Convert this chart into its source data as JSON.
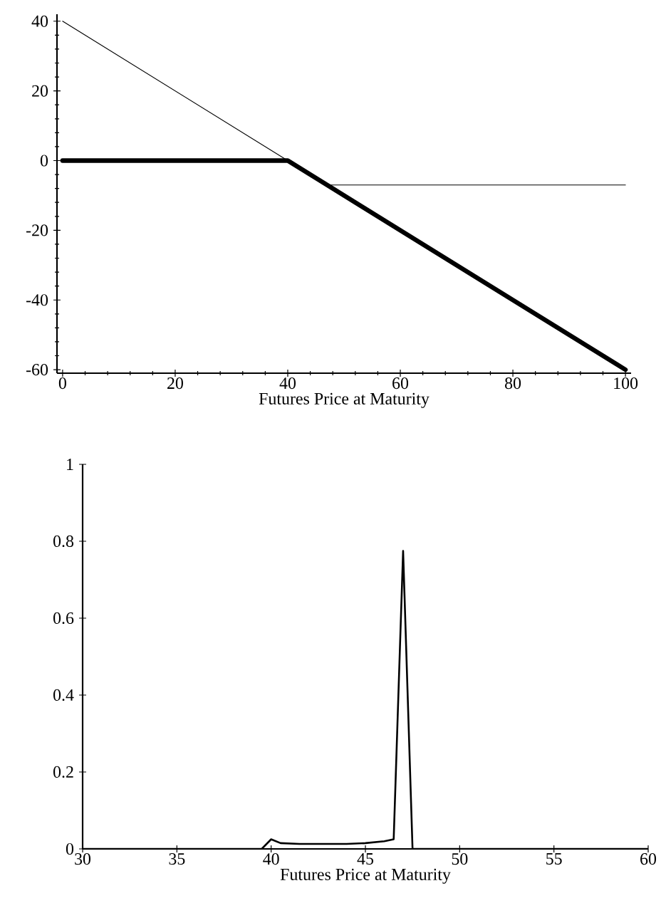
{
  "chart_data": [
    {
      "type": "line",
      "xlabel": "Futures Price at Maturity",
      "xlim": [
        -1,
        101
      ],
      "ylim": [
        -61,
        42
      ],
      "xticks": [
        0,
        20,
        40,
        60,
        80,
        100
      ],
      "yticks": [
        -60,
        -40,
        -20,
        0,
        20,
        40
      ],
      "grid": false,
      "series": [
        {
          "color": "#000000",
          "x": [
            0,
            47,
            100
          ],
          "values": [
            40,
            -7,
            -7
          ]
        },
        {
          "color": "#000000",
          "x": [
            0,
            40,
            100
          ],
          "values": [
            0,
            0,
            -60
          ]
        }
      ]
    },
    {
      "type": "line",
      "xlabel": "Futures Price at Maturity",
      "xlim": [
        30,
        60
      ],
      "ylim": [
        0,
        1
      ],
      "xticks": [
        30,
        35,
        40,
        45,
        50,
        55,
        60
      ],
      "yticks": [
        0,
        0.2,
        0.4,
        0.6,
        0.8,
        1
      ],
      "grid": false,
      "series": [
        {
          "color": "#000000",
          "x": [
            30,
            39.5,
            40,
            40.5,
            41.5,
            44,
            45,
            46,
            46.5,
            47,
            47.5,
            60
          ],
          "values": [
            0,
            0,
            0.025,
            0.015,
            0.013,
            0.013,
            0.015,
            0.02,
            0.025,
            0.775,
            0,
            0
          ]
        }
      ]
    }
  ]
}
